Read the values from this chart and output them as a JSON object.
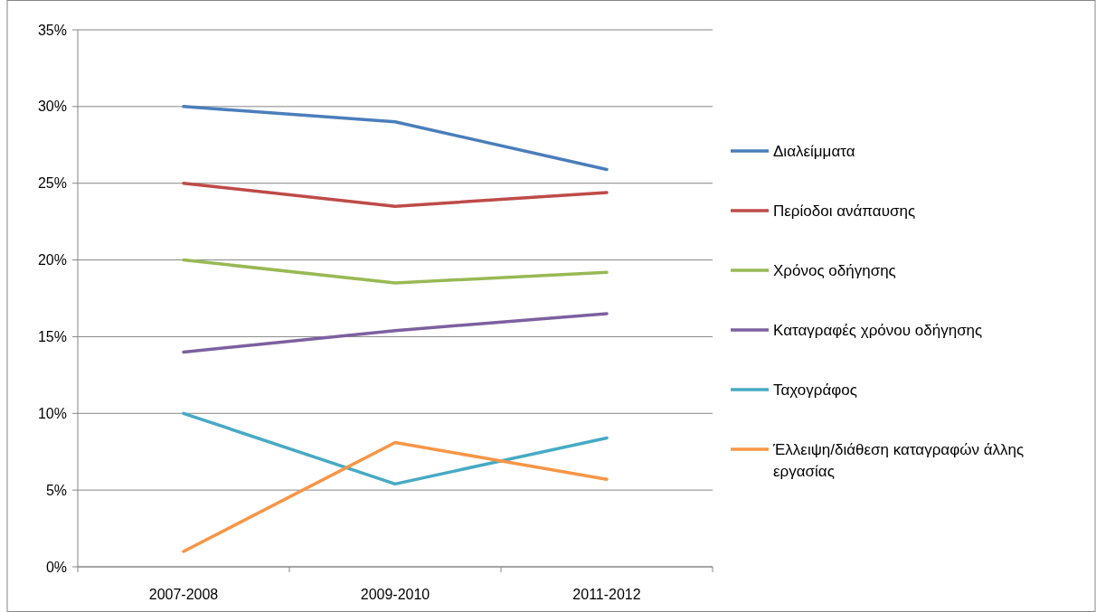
{
  "chart_data": {
    "type": "line",
    "categories": [
      "2007-2008",
      "2009-2010",
      "2011-2012"
    ],
    "series": [
      {
        "name": "Διαλείμματα",
        "color": "#4a7ebb",
        "values": [
          30,
          29,
          25.9
        ]
      },
      {
        "name": "Περίοδοι ανάπαυσης",
        "color": "#be4b48",
        "values": [
          25,
          23.5,
          24.4
        ]
      },
      {
        "name": "Χρόνος οδήγησης",
        "color": "#98b954",
        "values": [
          20,
          18.5,
          19.2
        ]
      },
      {
        "name": "Καταγραφές χρόνου οδήγησης",
        "color": "#7d60a0",
        "values": [
          14,
          15.4,
          16.5
        ]
      },
      {
        "name": "Ταχογράφος",
        "color": "#46aac5",
        "values": [
          10,
          5.4,
          8.4
        ]
      },
      {
        "name": "Έλλειψη/διάθεση καταγραφών άλλης εργασίας",
        "color": "#f79646",
        "values": [
          1,
          8.1,
          5.7
        ]
      }
    ],
    "ylim": [
      0,
      35
    ],
    "yticks": [
      {
        "value": 0,
        "label": "0%"
      },
      {
        "value": 5,
        "label": "5%"
      },
      {
        "value": 10,
        "label": "10%"
      },
      {
        "value": 15,
        "label": "15%"
      },
      {
        "value": 20,
        "label": "20%"
      },
      {
        "value": 25,
        "label": "25%"
      },
      {
        "value": 30,
        "label": "30%"
      },
      {
        "value": 35,
        "label": "35%"
      }
    ],
    "grid": "y",
    "legend": "right",
    "marker": "none",
    "line_style": "solid"
  }
}
